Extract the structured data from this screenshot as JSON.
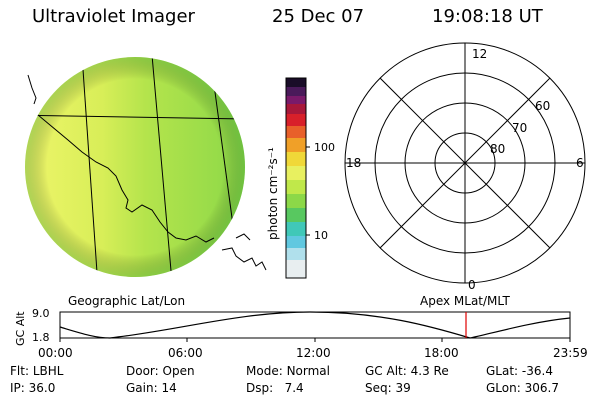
{
  "header": {
    "title": "Ultraviolet Imager",
    "date": "25 Dec 07",
    "time": "19:08:18 UT"
  },
  "colorbar": {
    "label": "photon cm⁻²s⁻¹",
    "ticks": [
      "100",
      "10"
    ]
  },
  "polar": {
    "mlt_labels": {
      "top": "12",
      "left": "18",
      "right": "6",
      "bottom": "0"
    },
    "lat_labels": [
      "60",
      "70",
      "80"
    ]
  },
  "labels": {
    "left_plot": "Geographic Lat/Lon",
    "right_plot": "Apex MLat/MLT"
  },
  "altitude": {
    "axis_label": "GC Alt",
    "y_ticks": [
      "9.0",
      "1.8"
    ],
    "x_ticks": [
      "00:00",
      "06:00",
      "12:00",
      "18:00",
      "23:59"
    ]
  },
  "footer": {
    "row1": [
      {
        "key": "Flt:",
        "value": "LBHL"
      },
      {
        "key": "Door:",
        "value": "Open"
      },
      {
        "key": "Mode:",
        "value": "Normal"
      },
      {
        "key": "GC Alt:",
        "value": "4.3 Re"
      },
      {
        "key": "GLat:",
        "value": "-36.4"
      }
    ],
    "row2": [
      {
        "key": "IP:",
        "value": "36.0"
      },
      {
        "key": "Gain:",
        "value": "14"
      },
      {
        "key": "Dsp:",
        "value": "7.4"
      },
      {
        "key": "Seq:",
        "value": "39"
      },
      {
        "key": "GLon:",
        "value": "306.7"
      }
    ]
  },
  "colors": {
    "imager_green": "#a8e048",
    "imager_yellow": "#e8f060",
    "marker": "#e00000"
  }
}
